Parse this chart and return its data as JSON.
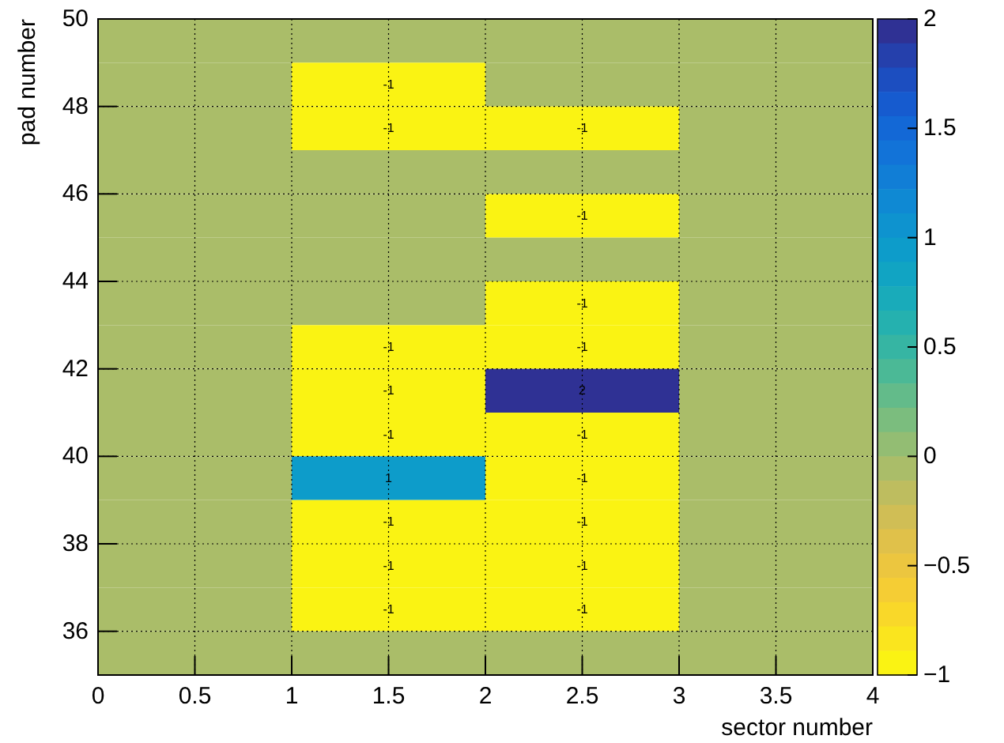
{
  "chart_data": {
    "type": "heatmap",
    "xlabel": "sector number",
    "ylabel": "pad number",
    "x": [
      0.5,
      1.5,
      2.5,
      3.5
    ],
    "y": [
      49.5,
      48.5,
      47.5,
      46.5,
      45.5,
      44.5,
      43.5,
      42.5,
      41.5,
      40.5,
      39.5,
      38.5,
      37.5,
      36.5,
      35.5
    ],
    "xlim": [
      0,
      4
    ],
    "xticks": [
      0,
      0.5,
      1,
      1.5,
      2,
      2.5,
      3,
      3.5,
      4
    ],
    "ylim": [
      35,
      50
    ],
    "yticks": [
      36,
      38,
      40,
      42,
      44,
      46,
      48,
      50
    ],
    "grid": true,
    "clim": [
      -1,
      2
    ],
    "cticks": [
      {
        "value": -1,
        "label": "−1"
      },
      {
        "value": -0.5,
        "label": "−0.5"
      },
      0,
      0.5,
      1,
      1.5,
      2
    ],
    "cells": [
      [
        0,
        0,
        0,
        0
      ],
      [
        0,
        -1,
        0,
        0
      ],
      [
        0,
        -1,
        -1,
        0
      ],
      [
        0,
        0,
        0,
        0
      ],
      [
        0,
        0,
        -1,
        0
      ],
      [
        0,
        0,
        0,
        0
      ],
      [
        0,
        0,
        -1,
        0
      ],
      [
        0,
        -1,
        -1,
        0
      ],
      [
        0,
        -1,
        2,
        0
      ],
      [
        0,
        -1,
        -1,
        0
      ],
      [
        0,
        1,
        -1,
        0
      ],
      [
        0,
        -1,
        -1,
        0
      ],
      [
        0,
        -1,
        -1,
        0
      ],
      [
        0,
        -1,
        -1,
        0
      ],
      [
        0,
        0,
        0,
        0
      ]
    ],
    "cell_labels": [
      [
        null,
        null,
        null,
        null
      ],
      [
        null,
        "-1",
        null,
        null
      ],
      [
        null,
        "-1",
        "-1",
        null
      ],
      [
        null,
        null,
        null,
        null
      ],
      [
        null,
        null,
        "-1",
        null
      ],
      [
        null,
        null,
        null,
        null
      ],
      [
        null,
        null,
        "-1",
        null
      ],
      [
        null,
        "-1",
        "-1",
        null
      ],
      [
        null,
        "-1",
        "2",
        null
      ],
      [
        null,
        "-1",
        "-1",
        null
      ],
      [
        null,
        "1",
        "-1",
        null
      ],
      [
        null,
        "-1",
        "-1",
        null
      ],
      [
        null,
        "-1",
        "-1",
        null
      ],
      [
        null,
        "-1",
        "-1",
        null
      ],
      [
        null,
        null,
        null,
        null
      ]
    ]
  }
}
